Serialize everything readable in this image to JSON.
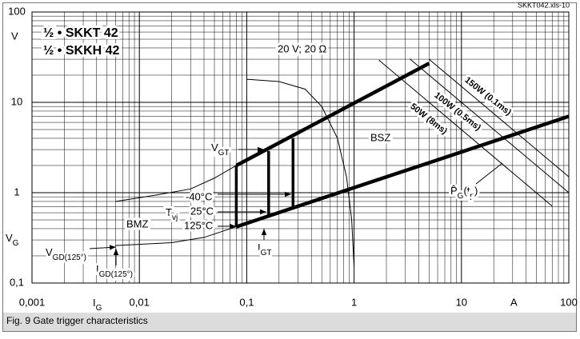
{
  "chart_data": {
    "type": "line",
    "log_x": true,
    "log_y": true,
    "grid": true,
    "minor_grid": true,
    "xlim": [
      0.001,
      100
    ],
    "ylim": [
      0.1,
      100
    ],
    "xticks": [
      {
        "value": 0.001,
        "label": "0,001"
      },
      {
        "value": 0.01,
        "label": "0,01"
      },
      {
        "value": 0.1,
        "label": "0,1"
      },
      1,
      10,
      100
    ],
    "yticks": [
      {
        "value": 0.1,
        "label": "0,1"
      },
      1,
      10,
      100
    ],
    "x_labels": [
      [
        "I",
        "G"
      ],
      "A"
    ],
    "y_labels": [
      "V",
      [
        "V",
        "G"
      ]
    ],
    "series": [
      {
        "color": "#000000",
        "line_width": 4.5,
        "x": [
          0.08,
          5
        ],
        "values": [
          2,
          27
        ]
      },
      {
        "color": "#000000",
        "line_width": 4.5,
        "x": [
          0.08,
          100
        ],
        "values": [
          0.42,
          7
        ]
      },
      {
        "color": "#000000",
        "line_width": 3.5,
        "x": [
          0.08,
          0.08
        ],
        "values": [
          0.42,
          2
        ]
      },
      {
        "color": "#000000",
        "line_width": 3.5,
        "x": [
          0.16,
          0.16
        ],
        "values": [
          0.53,
          2.9
        ]
      },
      {
        "color": "#000000",
        "line_width": 3.5,
        "x": [
          0.27,
          0.27
        ],
        "values": [
          0.66,
          4
        ]
      },
      {
        "color": "#000000",
        "line_width": 1,
        "x": [
          0.006,
          0.02,
          0.04,
          0.08
        ],
        "values": [
          0.26,
          0.28,
          0.32,
          0.42
        ]
      },
      {
        "color": "#000000",
        "line_width": 1,
        "x": [
          0.006,
          0.015,
          0.03,
          0.05,
          0.08
        ],
        "values": [
          0.8,
          0.95,
          1.1,
          1.45,
          2
        ]
      },
      {
        "color": "#000000",
        "line_width": 1,
        "x": [
          0.1,
          0.2,
          0.35,
          0.5,
          0.7,
          0.85,
          0.95,
          1
        ],
        "values": [
          18,
          17,
          14,
          9,
          4,
          1.5,
          0.5,
          0.15
        ]
      },
      {
        "color": "#000000",
        "line_width": 1,
        "x": [
          1.7,
          70
        ],
        "values": [
          29.4,
          0.71
        ]
      },
      {
        "color": "#000000",
        "line_width": 1,
        "x": [
          3.3,
          100
        ],
        "values": [
          30.3,
          1
        ]
      },
      {
        "color": "#000000",
        "line_width": 1,
        "x": [
          5,
          100
        ],
        "values": [
          30,
          1.5
        ]
      }
    ],
    "annotations": [
      "SKKT042.xls-10",
      "½ • SKKT 42",
      "½ • SKKH 42",
      "20 V; 20 Ω",
      [
        "V",
        "GT"
      ],
      "BSZ",
      "-40°C",
      [
        "T",
        "vj"
      ],
      "25°C",
      "125°C",
      "BMZ",
      [
        "V",
        "GD(125°)"
      ],
      [
        "I",
        "GD(125°)"
      ],
      [
        "I",
        "GT"
      ],
      [
        "P̂",
        "G",
        "(t",
        "p",
        ")"
      ],
      "150W (0.1ms)",
      "100W (0.5ms)",
      "50W (8ms)"
    ],
    "caption": "Fig. 9 Gate trigger characteristics"
  }
}
